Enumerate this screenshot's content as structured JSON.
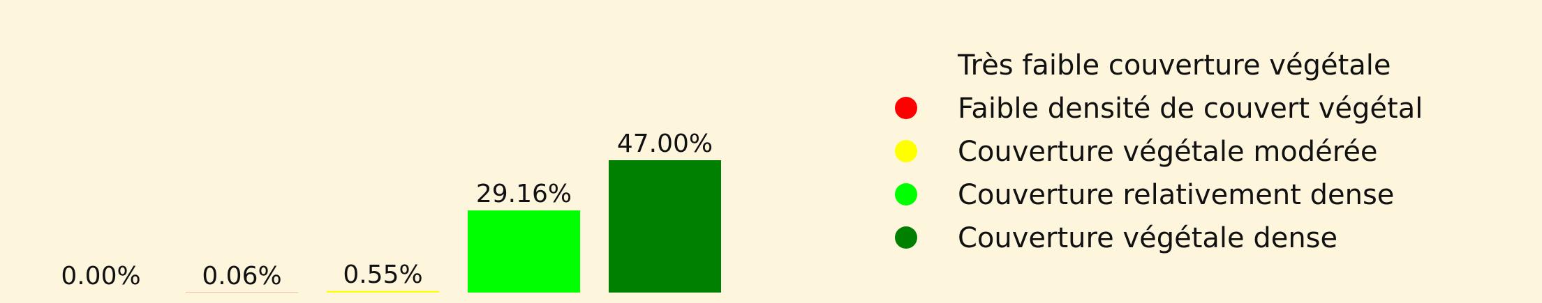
{
  "chart_data": {
    "type": "bar",
    "categories": [
      "Très faible couverture végétale",
      "Faible densité de couvert végétal",
      "Couverture végétale modérée",
      "Couverture relativement dense",
      "Couverture végétale dense"
    ],
    "values": [
      0.0,
      0.06,
      0.55,
      29.16,
      47.0
    ],
    "labels": [
      "0.00%",
      "0.06%",
      "0.55%",
      "29.16%",
      "47.00%"
    ],
    "colors": [
      "#fdf5dc",
      "#ff0000",
      "#ffff00",
      "#00ff00",
      "#008000"
    ],
    "unit": "%",
    "ylim": [
      0,
      47.0
    ],
    "grid": false,
    "legend_position": "right",
    "background": "#fdf5dc"
  }
}
